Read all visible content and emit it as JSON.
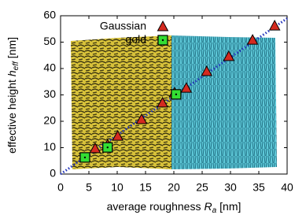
{
  "chart_data": {
    "type": "scatter",
    "x_label": [
      "average roughness",
      "R",
      "a",
      "[nm]"
    ],
    "y_label": [
      "effective height",
      "h",
      "eff",
      "[nm]"
    ],
    "xlim": [
      0,
      40
    ],
    "xticks": [
      0,
      5,
      10,
      15,
      20,
      25,
      30,
      35,
      40
    ],
    "ylim": [
      0,
      60
    ],
    "yticks": [
      0,
      10,
      20,
      30,
      40,
      50,
      60
    ],
    "legend": "upper left",
    "series": [
      {
        "name": "Gaussian",
        "marker": "triangle",
        "color": "#d42a20",
        "x": [
          6.1,
          8.3,
          10.1,
          14.3,
          18.0,
          20.1,
          22.2,
          25.8,
          29.7,
          33.9,
          37.8
        ],
        "values": [
          9.6,
          11.0,
          14.3,
          20.6,
          26.9,
          30.7,
          32.5,
          38.8,
          44.5,
          50.7,
          56.1
        ]
      },
      {
        "name": "gold",
        "marker": "square",
        "color": "#33dd33",
        "x": [
          4.3,
          8.3,
          20.4
        ],
        "values": [
          6.3,
          10.1,
          30.2
        ]
      }
    ],
    "fit_line": {
      "color": "#2233bb",
      "x": [
        0,
        40
      ],
      "values": [
        0,
        59
      ]
    }
  }
}
